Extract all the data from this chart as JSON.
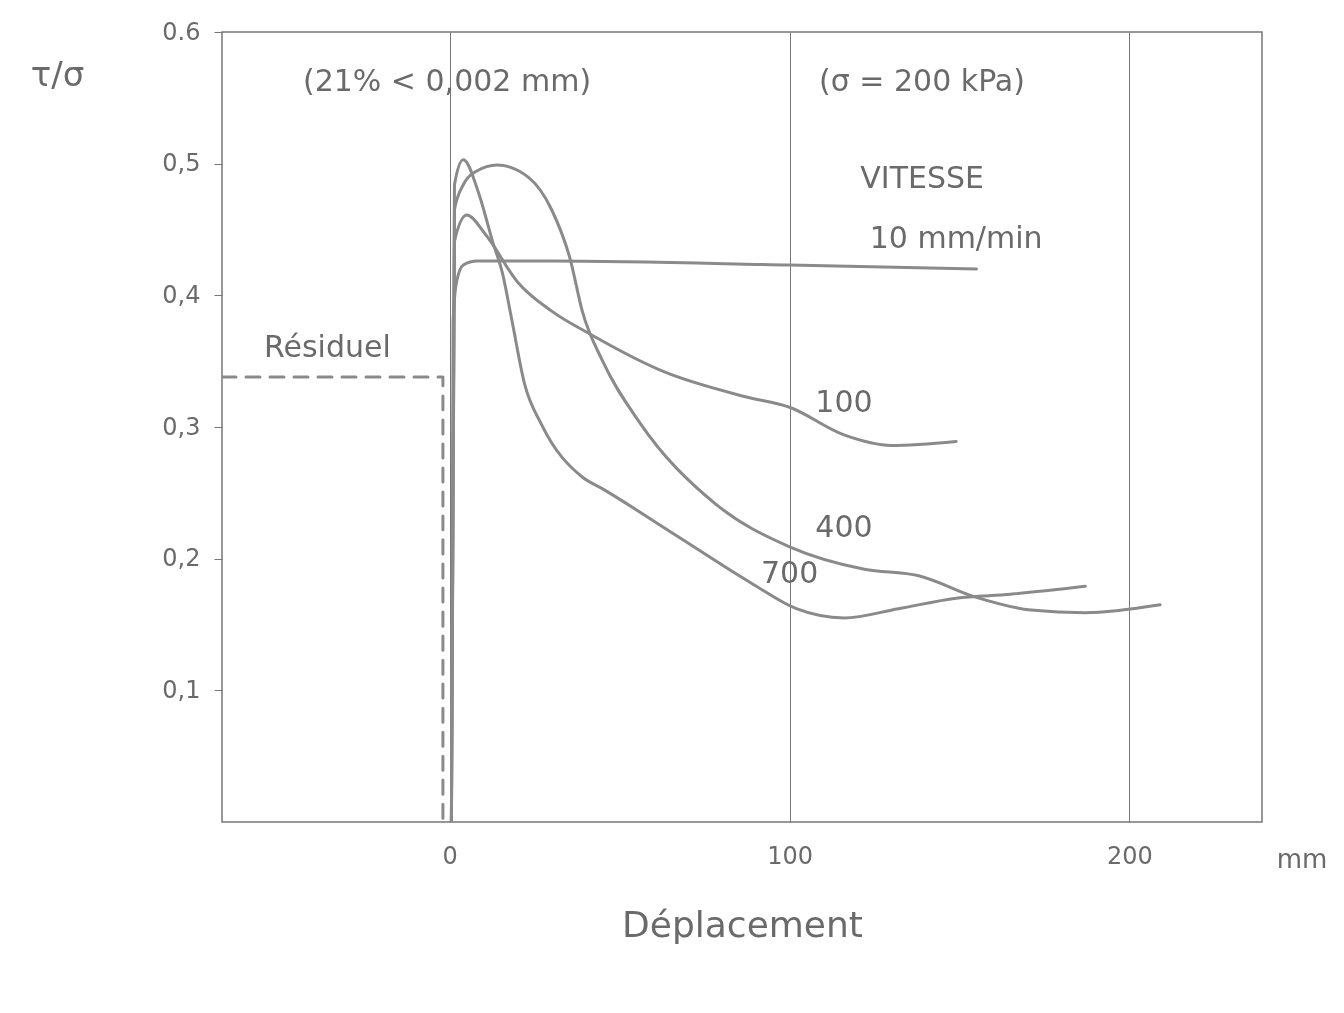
{
  "chart_data": {
    "type": "line",
    "xlabel": "Déplacement",
    "ylabel": "τ/σ",
    "legend_title": "VITESSE",
    "annotations": [
      "(21% < 0,002 mm)",
      "(σ = 200 kPa)",
      "mm"
    ],
    "xlim": [
      -67,
      239
    ],
    "ylim": [
      0,
      0.6
    ],
    "xticks": [
      0,
      100,
      200
    ],
    "yticks": [
      {
        "value": 0.1,
        "label": "0,1"
      },
      {
        "value": 0.2,
        "label": "0,2"
      },
      {
        "value": 0.3,
        "label": "0,3"
      },
      {
        "value": 0.4,
        "label": "0,4"
      },
      {
        "value": 0.5,
        "label": "0,5"
      },
      0.6
    ],
    "grid": "x",
    "line_style": "solid",
    "series": [
      {
        "name": "10 mm/min",
        "color": "#8a8a8a",
        "x": [
          0.5,
          1,
          2,
          4,
          8,
          30,
          100,
          155
        ],
        "values": [
          0,
          0.38,
          0.41,
          0.423,
          0.426,
          0.426,
          0.423,
          0.42
        ]
      },
      {
        "name": "100",
        "color": "#8a8a8a",
        "x": [
          0.5,
          1.4,
          5,
          10.6,
          20,
          30,
          41,
          63,
          87,
          100,
          116,
          130,
          149
        ],
        "values": [
          0,
          0.441,
          0.461,
          0.446,
          0.41,
          0.388,
          0.371,
          0.342,
          0.323,
          0.315,
          0.294,
          0.286,
          0.289
        ]
      },
      {
        "name": "400",
        "color": "#8a8a8a",
        "x": [
          0.5,
          1.4,
          4,
          7.7,
          14,
          23,
          30,
          35.5,
          39,
          45,
          56,
          78,
          100,
          122,
          138,
          154.5,
          171,
          187,
          209
        ],
        "values": [
          0,
          0.465,
          0.484,
          0.494,
          0.499,
          0.49,
          0.465,
          0.427,
          0.388,
          0.35,
          0.303,
          0.242,
          0.209,
          0.192,
          0.187,
          0.171,
          0.161,
          0.159,
          0.165
        ]
      },
      {
        "name": "700",
        "color": "#8a8a8a",
        "x": [
          0.5,
          1.4,
          4,
          8.6,
          12.6,
          15.5,
          18.3,
          22,
          27,
          39,
          45,
          67,
          89,
          102,
          116,
          132,
          149,
          165,
          187
        ],
        "values": [
          0,
          0.484,
          0.503,
          0.477,
          0.441,
          0.417,
          0.381,
          0.333,
          0.302,
          0.262,
          0.253,
          0.217,
          0.181,
          0.162,
          0.155,
          0.162,
          0.17,
          0.173,
          0.179
        ]
      },
      {
        "name": "Résiduel",
        "color": "#8a8a8a",
        "line_style": "dashed",
        "x": [
          -67,
          -2,
          -2
        ],
        "values": [
          0.338,
          0.338,
          0
        ]
      }
    ]
  }
}
